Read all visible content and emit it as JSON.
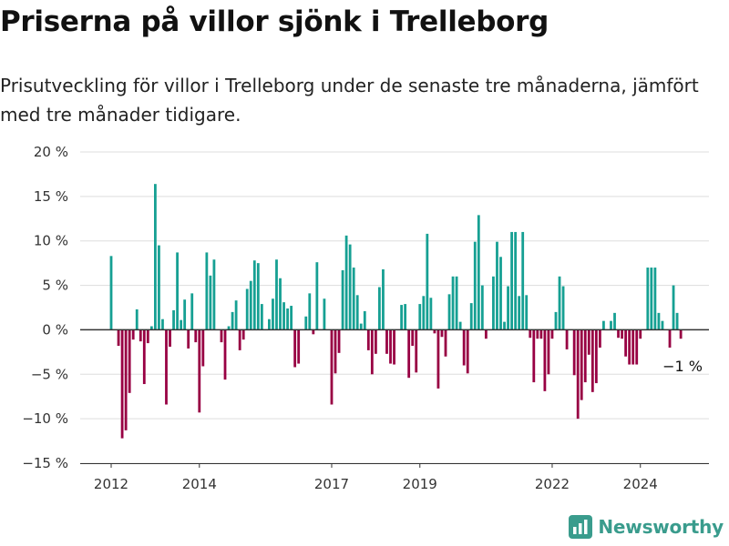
{
  "title": "Priserna på villor sjönk i Trelleborg",
  "subtitle": "Prisutveckling för villor i Trelleborg under de senaste tre månaderna, jämfört med tre månader tidigare.",
  "brand": "Newsworthy",
  "colors": {
    "positive": "#16a093",
    "negative": "#980043",
    "grid": "#dddddd",
    "zero": "#333333",
    "brand": "#3a9c8d"
  },
  "chart_data": {
    "type": "bar",
    "frequency": "monthly",
    "start": "2012-01",
    "ylim": [
      -15,
      20
    ],
    "yticks": [
      -15,
      -10,
      -5,
      0,
      5,
      10,
      15,
      20
    ],
    "ytick_labels": [
      "−15 %",
      "−10 %",
      "−5 %",
      "0 %",
      "5 %",
      "10 %",
      "15 %",
      "20 %"
    ],
    "xtick_labels": [
      "2012",
      "2014",
      "2017",
      "2019",
      "2022",
      "2024"
    ],
    "annotation": "−1 %",
    "values": [
      8.3,
      0,
      -1.8,
      -12.2,
      -11.3,
      -7.1,
      -1.1,
      2.3,
      -1.3,
      -6.1,
      -1.5,
      0.4,
      16.4,
      9.5,
      1.2,
      -8.4,
      -1.9,
      2.2,
      8.7,
      1.1,
      3.4,
      -2.1,
      4.1,
      -1.4,
      -9.3,
      -4.1,
      8.7,
      6.1,
      7.9,
      0,
      -1.4,
      -5.6,
      0.4,
      2.0,
      3.3,
      -2.3,
      -1.1,
      4.6,
      5.5,
      7.8,
      7.5,
      2.9,
      0,
      1.2,
      3.5,
      7.9,
      5.8,
      3.1,
      2.4,
      2.7,
      -4.2,
      -3.8,
      0,
      1.5,
      4.1,
      -0.5,
      7.6,
      0,
      3.5,
      0,
      -8.4,
      -4.9,
      -2.6,
      6.7,
      10.6,
      9.6,
      7.0,
      3.9,
      0.7,
      2.1,
      -2.3,
      -5.0,
      -2.7,
      4.8,
      6.8,
      -2.7,
      -3.8,
      -3.9,
      0,
      2.8,
      2.9,
      -5.4,
      -1.8,
      -4.8,
      2.9,
      3.8,
      10.8,
      3.6,
      -0.4,
      -6.6,
      -0.8,
      -3.0,
      4.0,
      6.0,
      6.0,
      0.9,
      -4.0,
      -4.9,
      3.0,
      9.9,
      12.9,
      5.0,
      -1.0,
      0,
      6.0,
      9.9,
      8.2,
      0.9,
      4.9,
      11.0,
      11.0,
      3.8,
      11.0,
      3.9,
      -0.9,
      -5.9,
      -1.0,
      -1.0,
      -6.9,
      -5.0,
      -1.0,
      2.0,
      6.0,
      4.9,
      -2.2,
      0,
      -5.1,
      -10.0,
      -7.9,
      -5.9,
      -2.8,
      -7.0,
      -6.0,
      -2.0,
      1.0,
      0,
      1.0,
      1.9,
      -0.9,
      -1.0,
      -3.0,
      -3.9,
      -3.9,
      -3.9,
      -1.0,
      0,
      7.0,
      7.0,
      7.0,
      1.9,
      1.0,
      0,
      -2.0,
      5.0,
      1.9,
      -1.0
    ]
  }
}
